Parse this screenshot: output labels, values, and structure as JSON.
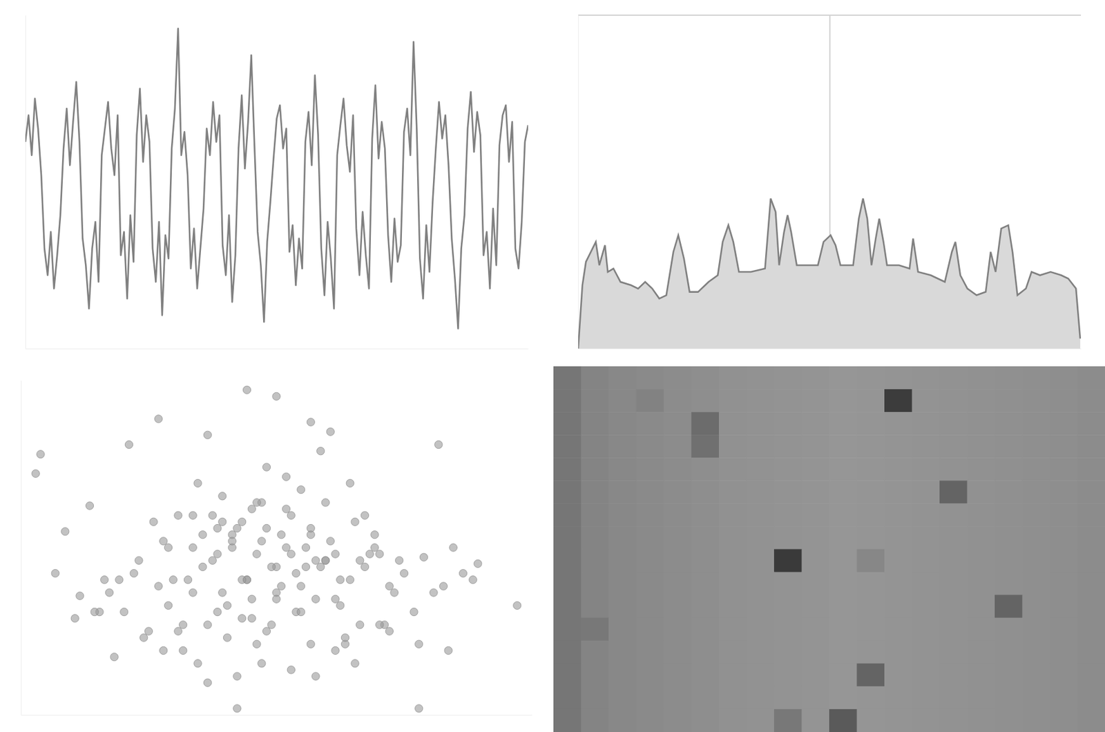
{
  "chart_data": [
    {
      "type": "line",
      "color": "#808080",
      "xlim": [
        0,
        158
      ],
      "ylim": [
        0,
        100
      ],
      "xticks": [],
      "yticks": [],
      "grid": false,
      "tick_labels": false,
      "values": [
        62,
        70,
        58,
        75,
        66,
        52,
        30,
        22,
        35,
        18,
        28,
        40,
        60,
        72,
        55,
        68,
        80,
        62,
        33,
        25,
        12,
        30,
        38,
        20,
        58,
        66,
        74,
        60,
        52,
        70,
        28,
        35,
        15,
        40,
        26,
        64,
        78,
        56,
        70,
        62,
        30,
        20,
        38,
        10,
        34,
        27,
        60,
        72,
        96,
        58,
        65,
        52,
        24,
        36,
        18,
        30,
        42,
        66,
        58,
        74,
        62,
        70,
        31,
        22,
        40,
        14,
        28,
        60,
        76,
        54,
        68,
        88,
        61,
        35,
        25,
        8,
        32,
        44,
        57,
        69,
        73,
        60,
        66,
        29,
        37,
        19,
        33,
        24,
        62,
        71,
        55,
        82,
        64,
        30,
        16,
        38,
        27,
        12,
        58,
        67,
        75,
        61,
        53,
        70,
        36,
        22,
        41,
        28,
        18,
        63,
        79,
        57,
        68,
        60,
        34,
        20,
        39,
        26,
        31,
        65,
        72,
        58,
        92,
        66,
        27,
        15,
        37,
        23,
        44,
        60,
        74,
        63,
        70,
        55,
        33,
        21,
        6,
        30,
        40,
        66,
        77,
        59,
        71,
        64,
        28,
        35,
        18,
        42,
        25,
        61,
        70,
        73,
        56,
        68,
        30,
        24,
        38,
        62,
        67
      ]
    },
    {
      "type": "area",
      "color": "#d9d9d9",
      "xlim": [
        0,
        713
      ],
      "ylim": [
        0,
        100
      ],
      "xticks": [
        357
      ],
      "yticks": [
        100
      ],
      "grid": true,
      "tick_labels": false,
      "x": [
        0,
        6,
        11,
        25,
        30,
        38,
        42,
        50,
        60,
        75,
        85,
        95,
        105,
        115,
        125,
        135,
        142,
        150,
        158,
        170,
        185,
        198,
        205,
        213,
        220,
        228,
        245,
        265,
        273,
        280,
        285,
        292,
        297,
        302,
        310,
        325,
        340,
        348,
        358,
        365,
        372,
        390,
        398,
        404,
        410,
        416,
        422,
        427,
        433,
        438,
        455,
        470,
        475,
        482,
        500,
        520,
        530,
        535,
        542,
        552,
        565,
        578,
        585,
        592,
        600,
        610,
        616,
        623,
        635,
        643,
        655,
        670,
        685,
        695,
        706,
        712
      ],
      "values": [
        0,
        19,
        26,
        32,
        25,
        31,
        23,
        24,
        20,
        19,
        18,
        20,
        18,
        15,
        16,
        29,
        34,
        27,
        17,
        17,
        20,
        22,
        32,
        37,
        32,
        23,
        23,
        24,
        45,
        41,
        25,
        35,
        40,
        35,
        25,
        25,
        25,
        32,
        34,
        31,
        25,
        25,
        39,
        45,
        39,
        25,
        33,
        39,
        32,
        25,
        25,
        24,
        33,
        23,
        22,
        20,
        29,
        32,
        22,
        18,
        16,
        17,
        29,
        23,
        36,
        37,
        29,
        16,
        18,
        23,
        22,
        23,
        22,
        21,
        18,
        3
      ]
    },
    {
      "type": "scatter",
      "color": "#999999",
      "marker": "circle",
      "xlim": [
        -2,
        102
      ],
      "ylim": [
        -2,
        102
      ],
      "xticks": [],
      "yticks": [],
      "grid": false,
      "tick_labels": false,
      "x": [
        44,
        50,
        1,
        2,
        99,
        42,
        79,
        57,
        61,
        20,
        26,
        36,
        59,
        83,
        12,
        7,
        91,
        73,
        65,
        34,
        48,
        52,
        55,
        39,
        45,
        30,
        25,
        60,
        66,
        70,
        41,
        47,
        53,
        58,
        35,
        28,
        22,
        18,
        63,
        68,
        74,
        80,
        86,
        88,
        15,
        10,
        5,
        33,
        38,
        43,
        49,
        54,
        62,
        57,
        46,
        40,
        31,
        27,
        24,
        19,
        14,
        9,
        71,
        76,
        82,
        67,
        64,
        50,
        44,
        37,
        29,
        35,
        42,
        51,
        56,
        61,
        69,
        75,
        53,
        47,
        39,
        32,
        26,
        21,
        16,
        58,
        63,
        72,
        78,
        84,
        90,
        45,
        50,
        55,
        40,
        36,
        30,
        44,
        49,
        54,
        59,
        65,
        70,
        27,
        33,
        38,
        43,
        48,
        57,
        62,
        67,
        52,
        46,
        41,
        37,
        60,
        56,
        51,
        45,
        34,
        31,
        23,
        17,
        13,
        73,
        79,
        85,
        66,
        71,
        48,
        53,
        58,
        42,
        47,
        36,
        62,
        28,
        55,
        50,
        64,
        43,
        38,
        60,
        57,
        33,
        46,
        52,
        68,
        41,
        39
      ],
      "values": [
        99,
        97,
        73,
        79,
        32,
        0,
        0,
        89,
        86,
        82,
        90,
        85,
        80,
        82,
        63,
        55,
        45,
        38,
        70,
        70,
        75,
        72,
        68,
        66,
        62,
        60,
        58,
        64,
        58,
        54,
        50,
        52,
        48,
        46,
        44,
        50,
        46,
        40,
        40,
        44,
        36,
        47,
        50,
        42,
        40,
        35,
        42,
        36,
        30,
        28,
        26,
        30,
        34,
        20,
        20,
        22,
        26,
        18,
        24,
        30,
        30,
        28,
        48,
        42,
        36,
        26,
        20,
        44,
        40,
        46,
        40,
        54,
        56,
        54,
        50,
        52,
        48,
        46,
        60,
        64,
        58,
        40,
        38,
        42,
        36,
        34,
        32,
        26,
        30,
        38,
        40,
        34,
        36,
        30,
        32,
        26,
        24,
        40,
        44,
        42,
        44,
        40,
        50,
        52,
        50,
        48,
        58,
        56,
        54,
        48,
        46,
        50,
        48,
        54,
        60,
        46,
        44,
        38,
        28,
        14,
        18,
        22,
        16,
        30,
        24,
        20,
        18,
        14,
        26,
        24,
        12,
        10,
        10,
        14,
        8,
        18,
        32,
        38,
        34,
        22,
        40,
        56,
        46,
        56,
        60,
        64,
        62,
        60,
        52,
        36
      ]
    },
    {
      "type": "heatmap",
      "tick_labels": false,
      "zlim": [
        0,
        255
      ],
      "cells": [
        [
          118,
          132,
          136,
          138,
          140,
          142,
          145,
          146,
          147,
          148,
          150,
          149,
          148,
          147,
          146,
          145,
          144,
          143,
          142,
          140
        ],
        [
          118,
          132,
          136,
          130,
          140,
          142,
          145,
          146,
          147,
          148,
          150,
          149,
          60,
          147,
          146,
          145,
          144,
          143,
          142,
          140
        ],
        [
          118,
          132,
          136,
          138,
          140,
          108,
          145,
          146,
          147,
          148,
          150,
          149,
          148,
          147,
          146,
          145,
          144,
          143,
          142,
          140
        ],
        [
          118,
          132,
          136,
          138,
          140,
          112,
          145,
          146,
          147,
          148,
          150,
          149,
          148,
          147,
          146,
          145,
          144,
          143,
          142,
          140
        ],
        [
          118,
          132,
          136,
          138,
          140,
          142,
          145,
          146,
          147,
          148,
          150,
          149,
          148,
          147,
          146,
          145,
          144,
          143,
          142,
          140
        ],
        [
          118,
          132,
          136,
          138,
          140,
          142,
          145,
          146,
          147,
          148,
          150,
          149,
          148,
          147,
          100,
          145,
          144,
          143,
          142,
          140
        ],
        [
          118,
          132,
          136,
          138,
          140,
          142,
          145,
          146,
          147,
          148,
          150,
          149,
          148,
          147,
          146,
          145,
          144,
          143,
          142,
          140
        ],
        [
          118,
          132,
          136,
          138,
          140,
          142,
          145,
          146,
          147,
          148,
          150,
          149,
          148,
          147,
          146,
          145,
          144,
          143,
          142,
          140
        ],
        [
          118,
          132,
          136,
          138,
          140,
          142,
          145,
          146,
          58,
          148,
          150,
          135,
          148,
          147,
          146,
          145,
          144,
          143,
          142,
          140
        ],
        [
          118,
          132,
          136,
          138,
          140,
          142,
          145,
          146,
          147,
          148,
          150,
          149,
          148,
          147,
          146,
          145,
          144,
          143,
          142,
          140
        ],
        [
          118,
          132,
          136,
          138,
          140,
          142,
          145,
          146,
          147,
          148,
          150,
          149,
          148,
          147,
          146,
          145,
          100,
          143,
          142,
          140
        ],
        [
          118,
          120,
          136,
          138,
          140,
          142,
          145,
          146,
          147,
          148,
          150,
          149,
          148,
          147,
          146,
          145,
          144,
          143,
          142,
          140
        ],
        [
          118,
          132,
          136,
          138,
          140,
          142,
          145,
          146,
          147,
          148,
          150,
          149,
          148,
          147,
          146,
          145,
          144,
          143,
          142,
          140
        ],
        [
          118,
          132,
          136,
          138,
          140,
          142,
          145,
          146,
          147,
          148,
          150,
          100,
          148,
          147,
          146,
          145,
          144,
          143,
          142,
          140
        ],
        [
          118,
          132,
          136,
          138,
          140,
          142,
          145,
          146,
          147,
          148,
          150,
          149,
          148,
          147,
          146,
          145,
          144,
          143,
          142,
          140
        ],
        [
          118,
          132,
          136,
          138,
          140,
          142,
          145,
          146,
          120,
          148,
          90,
          149,
          148,
          147,
          146,
          145,
          144,
          143,
          142,
          140
        ]
      ]
    }
  ]
}
